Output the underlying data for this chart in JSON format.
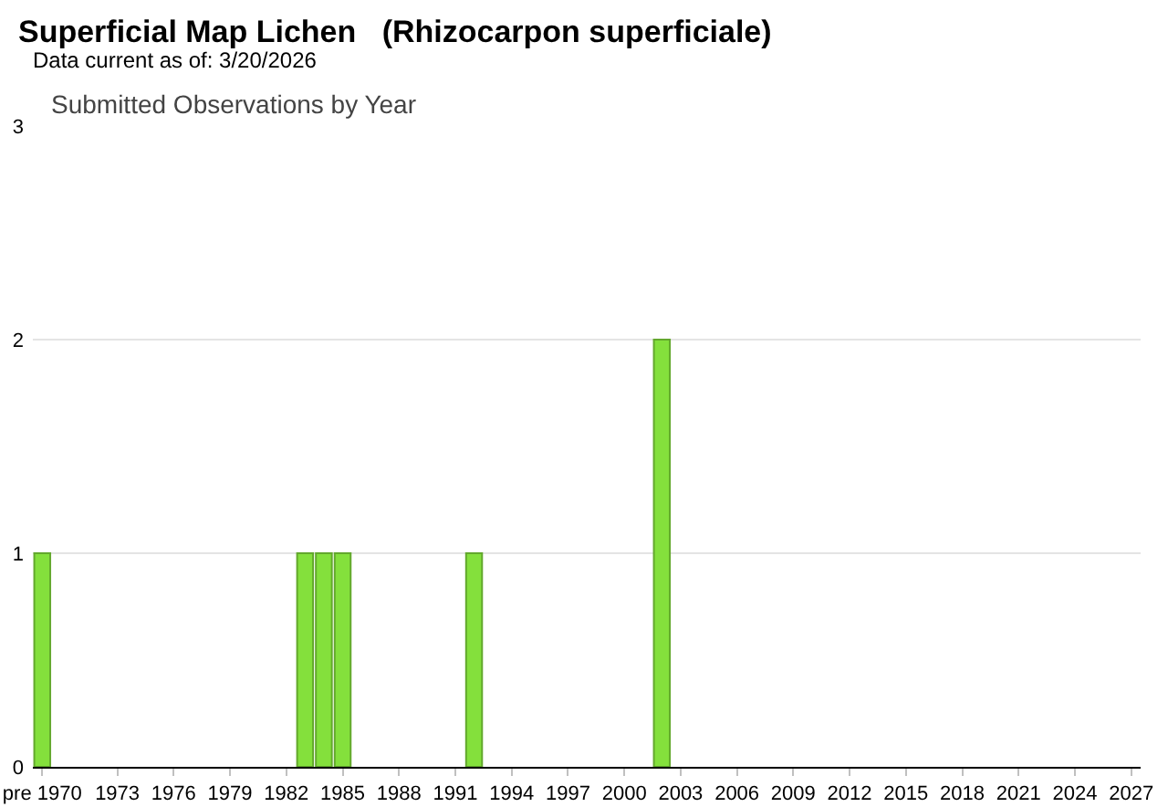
{
  "chart_data": {
    "type": "bar",
    "title": "Superficial Map Lichen   (Rhizocarpon superficiale)",
    "subtitle": "Data current as of: 3/20/2026",
    "annotations": [
      "Submitted Observations by Year"
    ],
    "categories": [
      "pre 1970",
      null,
      null,
      null,
      "1973",
      null,
      null,
      "1976",
      null,
      null,
      "1979",
      null,
      null,
      "1982",
      null,
      null,
      "1985",
      null,
      null,
      "1988",
      null,
      null,
      "1991",
      null,
      null,
      "1994",
      null,
      null,
      "1997",
      null,
      null,
      "2000",
      null,
      null,
      "2003",
      null,
      null,
      "2006",
      null,
      null,
      "2009",
      null,
      null,
      "2012",
      null,
      null,
      "2015",
      null,
      null,
      "2018",
      null,
      null,
      "2021",
      null,
      null,
      "2024",
      null,
      null,
      "2027"
    ],
    "values": [
      1,
      0,
      0,
      0,
      0,
      0,
      0,
      0,
      0,
      0,
      0,
      0,
      0,
      0,
      1,
      1,
      1,
      0,
      0,
      0,
      0,
      0,
      0,
      1,
      0,
      0,
      0,
      0,
      0,
      0,
      0,
      0,
      0,
      2,
      0,
      0,
      0,
      0,
      0,
      0,
      0,
      0,
      0,
      0,
      0,
      0,
      0,
      0,
      0,
      0,
      0,
      0,
      0,
      0,
      0,
      0,
      0,
      0,
      0
    ],
    "color": "#84e03c",
    "ylim": [
      0,
      3
    ],
    "yticks": [
      0,
      1,
      2,
      3
    ],
    "grid": "y"
  }
}
